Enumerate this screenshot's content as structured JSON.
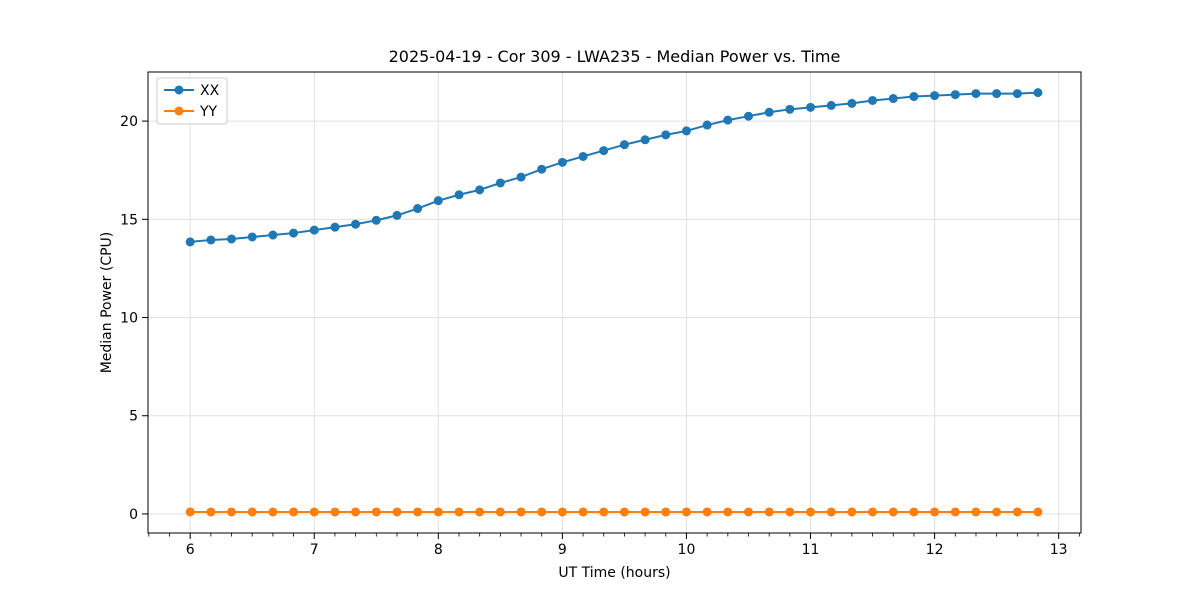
{
  "chart_data": {
    "type": "line",
    "title": "2025-04-19 - Cor 309 - LWA235 - Median Power vs. Time",
    "xlabel": "UT Time (hours)",
    "ylabel": "Median Power (CPU)",
    "xlim": [
      5.66,
      13.18
    ],
    "ylim": [
      -0.97,
      22.5
    ],
    "xticks": [
      6,
      7,
      8,
      9,
      10,
      11,
      12,
      13
    ],
    "yticks": [
      0,
      5,
      10,
      15,
      20
    ],
    "x_minor_step": 0.16667,
    "grid": true,
    "legend_position": "upper left",
    "background_color": "#ffffff",
    "grid_color": "#e0e0e0",
    "spine_color": "#000000",
    "x": [
      6.0,
      6.167,
      6.333,
      6.5,
      6.667,
      6.833,
      7.0,
      7.167,
      7.333,
      7.5,
      7.667,
      7.833,
      8.0,
      8.167,
      8.333,
      8.5,
      8.667,
      8.833,
      9.0,
      9.167,
      9.333,
      9.5,
      9.667,
      9.833,
      10.0,
      10.167,
      10.333,
      10.5,
      10.667,
      10.833,
      11.0,
      11.167,
      11.333,
      11.5,
      11.667,
      11.833,
      12.0,
      12.167,
      12.333,
      12.5,
      12.667,
      12.833
    ],
    "series": [
      {
        "name": "XX",
        "color": "#1f77b4",
        "values": [
          13.85,
          13.95,
          14.0,
          14.1,
          14.2,
          14.3,
          14.45,
          14.6,
          14.75,
          14.95,
          15.2,
          15.55,
          15.95,
          16.25,
          16.5,
          16.85,
          17.15,
          17.55,
          17.9,
          18.2,
          18.5,
          18.8,
          19.05,
          19.3,
          19.5,
          19.8,
          20.05,
          20.25,
          20.45,
          20.6,
          20.7,
          20.8,
          20.9,
          21.05,
          21.15,
          21.25,
          21.3,
          21.35,
          21.4,
          21.4,
          21.4,
          21.45
        ]
      },
      {
        "name": "YY",
        "color": "#ff7f0e",
        "values": [
          0.1,
          0.1,
          0.1,
          0.1,
          0.1,
          0.1,
          0.1,
          0.1,
          0.1,
          0.1,
          0.1,
          0.1,
          0.1,
          0.1,
          0.1,
          0.1,
          0.1,
          0.1,
          0.1,
          0.1,
          0.1,
          0.1,
          0.1,
          0.1,
          0.1,
          0.1,
          0.1,
          0.1,
          0.1,
          0.1,
          0.1,
          0.1,
          0.1,
          0.1,
          0.1,
          0.1,
          0.1,
          0.1,
          0.1,
          0.1,
          0.1,
          0.1
        ]
      }
    ]
  }
}
